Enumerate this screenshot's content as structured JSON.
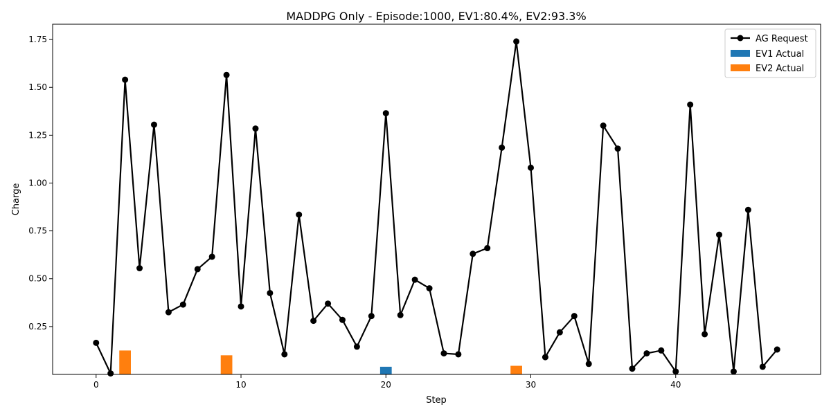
{
  "chart_data": {
    "type": "line",
    "title": "MADDPG Only - Episode:1000, EV1:80.4%, EV2:93.3%",
    "xlabel": "Step",
    "ylabel": "Charge",
    "xlim": [
      -3,
      50
    ],
    "ylim": [
      0,
      1.83
    ],
    "xticks": [
      0,
      10,
      20,
      30,
      40
    ],
    "yticks": [
      0.25,
      0.5,
      0.75,
      1.0,
      1.25,
      1.5,
      1.75
    ],
    "ytick_labels": [
      "0.25",
      "0.50",
      "0.75",
      "1.00",
      "1.25",
      "1.50",
      "1.75"
    ],
    "grid": false,
    "legend_position": "top-right",
    "colors": {
      "ag": "#000000",
      "ev1": "#1f77b4",
      "ev2": "#ff7f0e"
    },
    "series": [
      {
        "name": "AG Request",
        "type": "line",
        "x": [
          0,
          1,
          2,
          3,
          4,
          5,
          6,
          7,
          8,
          9,
          10,
          11,
          12,
          13,
          14,
          15,
          16,
          17,
          18,
          19,
          20,
          21,
          22,
          23,
          24,
          25,
          26,
          27,
          28,
          29,
          30,
          31,
          32,
          33,
          34,
          35,
          36,
          37,
          38,
          39,
          40,
          41,
          42,
          43,
          44,
          45,
          46,
          47
        ],
        "values": [
          0.165,
          0.005,
          1.54,
          0.555,
          1.305,
          0.325,
          0.365,
          0.55,
          0.615,
          1.565,
          0.355,
          1.285,
          0.425,
          0.105,
          0.835,
          0.28,
          0.37,
          0.285,
          0.145,
          0.305,
          1.365,
          0.31,
          0.495,
          0.45,
          0.11,
          0.105,
          0.63,
          0.66,
          1.185,
          1.74,
          1.08,
          0.09,
          0.22,
          0.305,
          0.055,
          1.3,
          1.18,
          0.03,
          0.11,
          0.125,
          0.015,
          1.41,
          0.21,
          0.73,
          0.015,
          0.86,
          0.04,
          0.13
        ]
      },
      {
        "name": "EV1 Actual",
        "type": "bar",
        "x": [
          20
        ],
        "values": [
          0.04
        ]
      },
      {
        "name": "EV2 Actual",
        "type": "bar",
        "x": [
          2,
          9,
          29
        ],
        "values": [
          0.125,
          0.1,
          0.045
        ]
      }
    ]
  }
}
